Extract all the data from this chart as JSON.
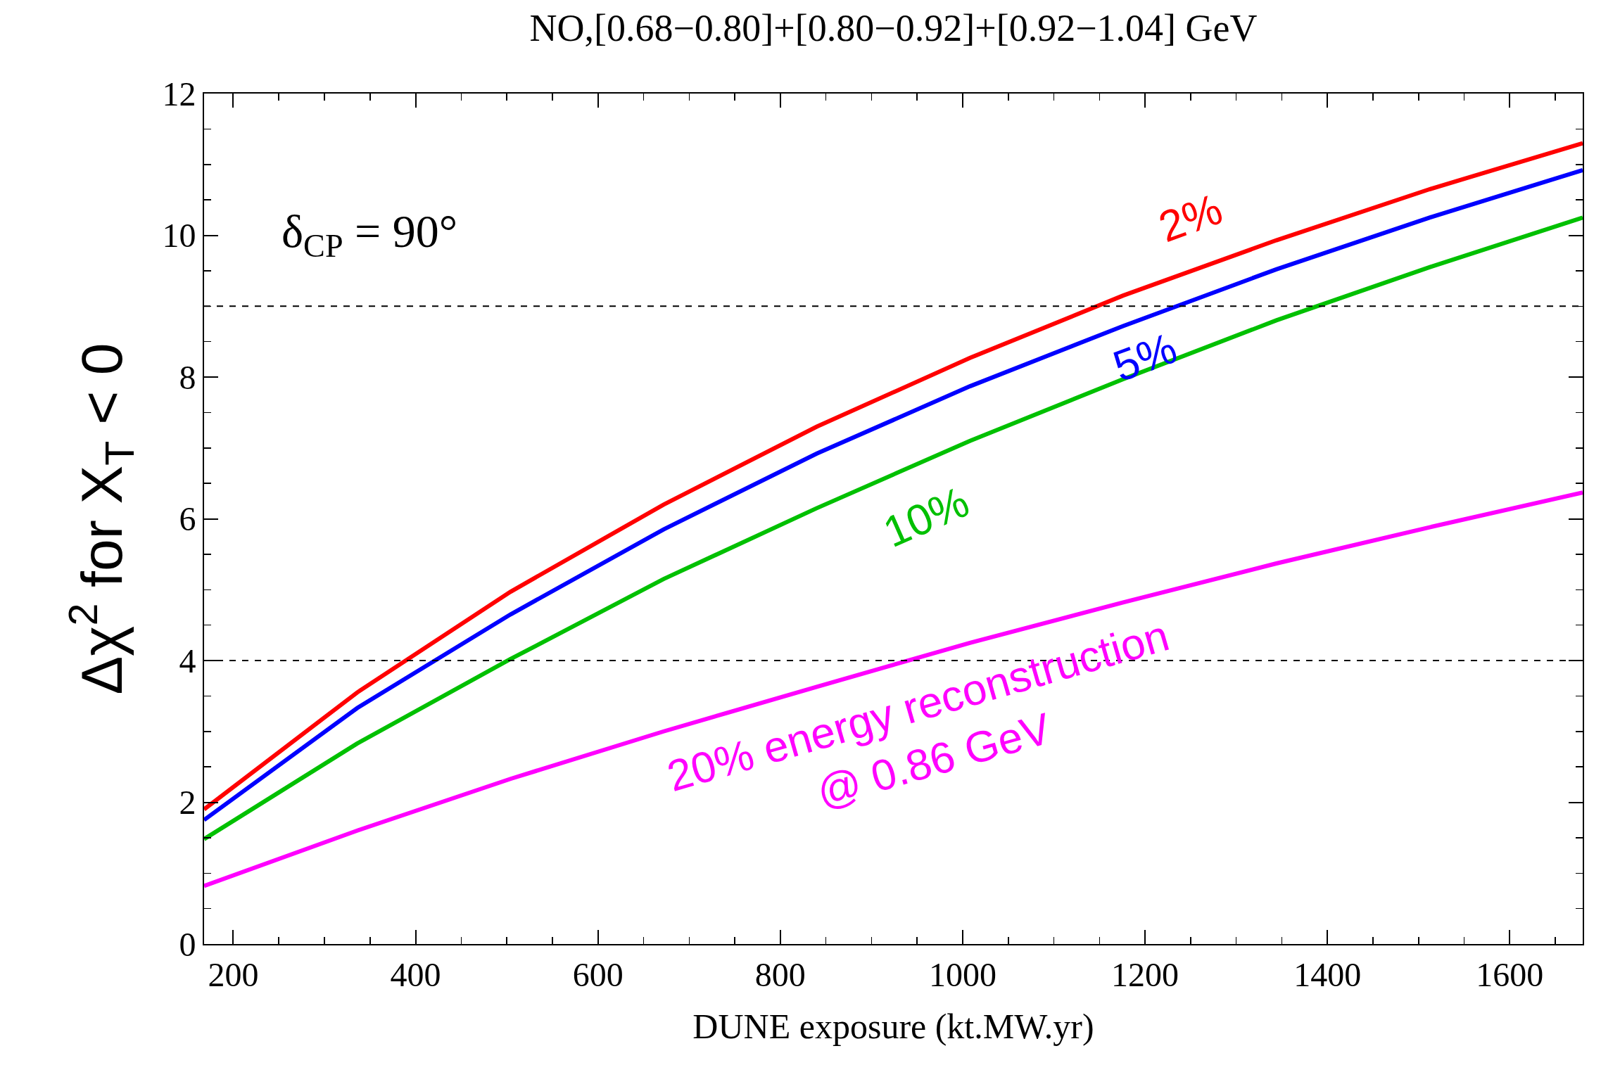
{
  "chart_data": {
    "type": "line",
    "title": "NO,[0.68−0.80]+[0.80−0.92]+[0.92−1.04] GeV",
    "xlabel": "DUNE exposure (kt.MW.yr)",
    "ylabel": "Δχ$^{2}$ for X$_{T}$ < 0",
    "annotations": [
      "δ$_{CP}$ = 90°"
    ],
    "x": [
      168,
      336,
      504,
      672,
      840,
      1008,
      1176,
      1344,
      1512,
      1680
    ],
    "series": [
      {
        "name": "2%",
        "color": "#ff0000",
        "values": [
          1.9,
          3.55,
          4.97,
          6.2,
          7.3,
          8.27,
          9.15,
          9.93,
          10.65,
          11.3
        ]
      },
      {
        "name": "5%",
        "color": "#0000ff",
        "values": [
          1.75,
          3.33,
          4.65,
          5.85,
          6.92,
          7.87,
          8.72,
          9.52,
          10.25,
          10.92
        ]
      },
      {
        "name": "10%",
        "color": "#00c000",
        "values": [
          1.48,
          2.83,
          4.02,
          5.15,
          6.15,
          7.1,
          7.97,
          8.8,
          9.55,
          10.25
        ]
      },
      {
        "name": "20% energy reconstruction\n@ 0.86 GeV",
        "color": "#ff00ff",
        "values": [
          0.82,
          1.6,
          2.33,
          3.0,
          3.63,
          4.25,
          4.82,
          5.37,
          5.88,
          6.37
        ]
      }
    ],
    "xlim": [
      168,
      1680
    ],
    "ylim": [
      0,
      12
    ],
    "xticks": [
      200,
      400,
      600,
      800,
      1000,
      1200,
      1400,
      1600
    ],
    "yticks": [
      0,
      2,
      4,
      6,
      8,
      10,
      12
    ],
    "ref_lines": [
      {
        "axis": "y",
        "value": 4,
        "color": "#000000",
        "line_style": "dashed"
      },
      {
        "axis": "y",
        "value": 9,
        "color": "#000000",
        "line_style": "dashed"
      }
    ],
    "grid": false,
    "legend": false,
    "marker": "none",
    "line_style": "solid"
  }
}
